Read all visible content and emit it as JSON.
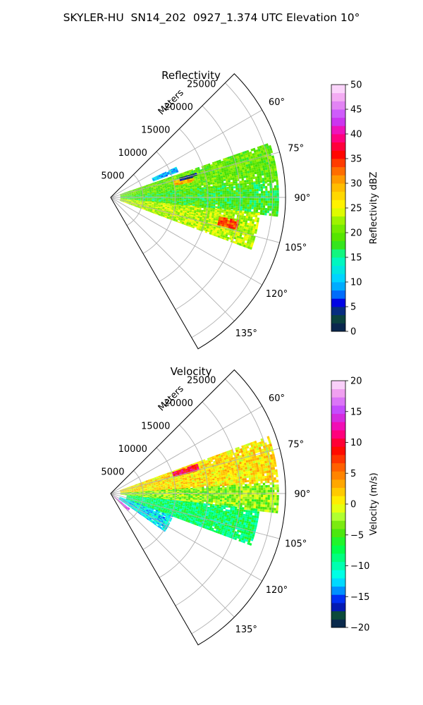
{
  "suptitle": "SKYLER-HU  SN14_202  0927_1.374 UTC Elevation 10°",
  "chart_data": [
    {
      "type": "ppi-sector",
      "title": "Reflectivity",
      "radial_axis_label": "Meters",
      "radial_ticks": [
        5000,
        10000,
        15000,
        20000,
        25000
      ],
      "radial_tick_labels": [
        "5000",
        "10000",
        "15000",
        "20000",
        "25000"
      ],
      "r_max": 27000,
      "azimuth_range_deg": [
        45,
        150
      ],
      "azimuth_ticks": [
        60,
        75,
        90,
        105,
        120,
        135
      ],
      "azimuth_tick_labels": [
        "60°",
        "75°",
        "90°",
        "105°",
        "120°",
        "135°"
      ],
      "grid": true,
      "colorbar": {
        "label": "Reflectivity dBZ",
        "min": 0,
        "max": 50,
        "ticks": [
          0,
          5,
          10,
          15,
          20,
          25,
          30,
          35,
          40,
          45,
          50
        ],
        "tick_labels": [
          "0",
          "5",
          "10",
          "15",
          "20",
          "25",
          "30",
          "35",
          "40",
          "45",
          "50"
        ],
        "stops": [
          {
            "v": 0,
            "c": "#0a1a55"
          },
          {
            "v": 3,
            "c": "#0b4a3a"
          },
          {
            "v": 6,
            "c": "#0000ee"
          },
          {
            "v": 8,
            "c": "#0090ff"
          },
          {
            "v": 11,
            "c": "#00d8ff"
          },
          {
            "v": 15,
            "c": "#00ffb0"
          },
          {
            "v": 18,
            "c": "#40e000"
          },
          {
            "v": 22,
            "c": "#8af000"
          },
          {
            "v": 25,
            "c": "#ffff00"
          },
          {
            "v": 30,
            "c": "#ffb000"
          },
          {
            "v": 33,
            "c": "#ff6000"
          },
          {
            "v": 36,
            "c": "#ff0000"
          },
          {
            "v": 40,
            "c": "#ff00a0"
          },
          {
            "v": 43,
            "c": "#c040ff"
          },
          {
            "v": 47,
            "c": "#f0a0f0"
          },
          {
            "v": 50,
            "c": "#ffe8ff"
          }
        ]
      },
      "echo_regions": [
        {
          "az": [
            71,
            84
          ],
          "r": [
            1500,
            26000
          ],
          "value": 20
        },
        {
          "az": [
            84,
            96
          ],
          "r": [
            1500,
            26000
          ],
          "value": 18
        },
        {
          "az": [
            96,
            110
          ],
          "r": [
            1500,
            23000
          ],
          "value": 23
        },
        {
          "az": [
            75,
            79
          ],
          "r": [
            10000,
            13000
          ],
          "value": 30
        },
        {
          "az": [
            100,
            104
          ],
          "r": [
            17000,
            20000
          ],
          "value": 34
        },
        {
          "az": [
            65,
            69
          ],
          "r": [
            7000,
            11000
          ],
          "value": 10
        },
        {
          "az": [
            74,
            76
          ],
          "r": [
            11000,
            13500
          ],
          "value": 4
        }
      ]
    },
    {
      "type": "ppi-sector",
      "title": "Velocity",
      "radial_axis_label": "Meters",
      "radial_ticks": [
        5000,
        10000,
        15000,
        20000,
        25000
      ],
      "radial_tick_labels": [
        "5000",
        "10000",
        "15000",
        "20000",
        "25000"
      ],
      "r_max": 27000,
      "azimuth_range_deg": [
        45,
        150
      ],
      "azimuth_ticks": [
        60,
        75,
        90,
        105,
        120,
        135
      ],
      "azimuth_tick_labels": [
        "60°",
        "75°",
        "90°",
        "105°",
        "120°",
        "135°"
      ],
      "grid": true,
      "colorbar": {
        "label": "Velocity (m/s)",
        "min": -20,
        "max": 20,
        "ticks": [
          -20,
          -15,
          -10,
          -5,
          0,
          5,
          10,
          15,
          20
        ],
        "tick_labels": [
          "−20",
          "−15",
          "−10",
          "−5",
          "0",
          "5",
          "10",
          "15",
          "20"
        ],
        "stops": [
          {
            "v": -20,
            "c": "#0a1a55"
          },
          {
            "v": -18,
            "c": "#0b4a3a"
          },
          {
            "v": -16,
            "c": "#0000ee"
          },
          {
            "v": -14,
            "c": "#0090ff"
          },
          {
            "v": -12,
            "c": "#00ffff"
          },
          {
            "v": -10,
            "c": "#00ffb0"
          },
          {
            "v": -7,
            "c": "#00ff40"
          },
          {
            "v": -4,
            "c": "#60e000"
          },
          {
            "v": -2,
            "c": "#b0ff30"
          },
          {
            "v": 0,
            "c": "#ffff00"
          },
          {
            "v": 3,
            "c": "#ffb000"
          },
          {
            "v": 6,
            "c": "#ff6000"
          },
          {
            "v": 9,
            "c": "#ff0000"
          },
          {
            "v": 12,
            "c": "#ff00a0"
          },
          {
            "v": 15,
            "c": "#c040ff"
          },
          {
            "v": 18,
            "c": "#f0a0f0"
          },
          {
            "v": 20,
            "c": "#ffe8ff"
          }
        ]
      },
      "echo_regions": [
        {
          "az": [
            70,
            86
          ],
          "r": [
            1500,
            26000
          ],
          "value": 1
        },
        {
          "az": [
            86,
            96
          ],
          "r": [
            1500,
            26000
          ],
          "value": -3
        },
        {
          "az": [
            96,
            110
          ],
          "r": [
            2500,
            23000
          ],
          "value": -8
        },
        {
          "az": [
            110,
            125
          ],
          "r": [
            1500,
            10000
          ],
          "value": -12
        },
        {
          "az": [
            128,
            136
          ],
          "r": [
            300,
            3500
          ],
          "value": 15
        },
        {
          "az": [
            71,
            75
          ],
          "r": [
            10000,
            14000
          ],
          "value": 10
        }
      ]
    }
  ]
}
